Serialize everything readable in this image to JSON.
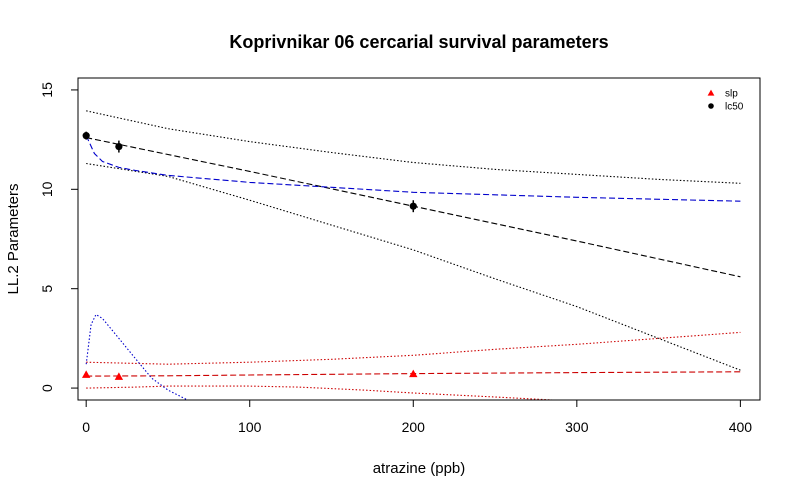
{
  "chart_data": {
    "type": "line",
    "title": "Koprivnikar 06 cercarial survival parameters",
    "xlabel": "atrazine (ppb)",
    "ylabel": "LL.2 Parameters",
    "xlim": [
      -5,
      412
    ],
    "ylim": [
      -0.6,
      15.6
    ],
    "xticks": [
      0,
      100,
      200,
      300,
      400
    ],
    "yticks": [
      0,
      5,
      10,
      15
    ],
    "grid": false,
    "legend_position": "top-right",
    "legend": [
      {
        "label": "slp",
        "marker": "triangle",
        "color": "#ff0000"
      },
      {
        "label": "lc50",
        "marker": "circle",
        "color": "#000000"
      }
    ],
    "points": [
      {
        "series": "lc50",
        "x": [
          0,
          20,
          200
        ],
        "y": [
          12.7,
          12.15,
          9.15
        ],
        "err_low": [
          12.5,
          11.85,
          8.85
        ],
        "err_high": [
          12.9,
          12.45,
          9.45
        ],
        "color": "#000000",
        "marker": "circle"
      },
      {
        "series": "slp",
        "x": [
          0,
          20,
          200
        ],
        "y": [
          0.68,
          0.58,
          0.72
        ],
        "err_low": [
          0.6,
          0.5,
          0.64
        ],
        "err_high": [
          0.76,
          0.66,
          0.8
        ],
        "color": "#ff0000",
        "marker": "triangle"
      }
    ],
    "lines": [
      {
        "series": "lc50 fit",
        "style": "dashed",
        "color": "#000000",
        "x": [
          0,
          100,
          200,
          300,
          400
        ],
        "y": [
          12.6,
          10.9,
          9.15,
          7.4,
          5.6
        ]
      },
      {
        "series": "lc50 upper band",
        "style": "dotted",
        "color": "#000000",
        "x": [
          0,
          50,
          100,
          150,
          200,
          250,
          300,
          350,
          400
        ],
        "y": [
          13.95,
          13.05,
          12.4,
          11.85,
          11.35,
          11.0,
          10.75,
          10.5,
          10.3
        ]
      },
      {
        "series": "lc50 lower band",
        "style": "dotted",
        "color": "#000000",
        "x": [
          0,
          50,
          100,
          150,
          200,
          250,
          300,
          350,
          400
        ],
        "y": [
          11.3,
          10.65,
          9.45,
          8.2,
          6.95,
          5.5,
          4.1,
          2.5,
          0.9
        ]
      },
      {
        "series": "lc50 smooth",
        "style": "dashed",
        "color": "#0000cc",
        "x": [
          0,
          5,
          10,
          20,
          30,
          50,
          100,
          150,
          200,
          300,
          400
        ],
        "y": [
          12.7,
          11.8,
          11.4,
          11.1,
          10.95,
          10.7,
          10.35,
          10.1,
          9.85,
          9.6,
          9.4
        ]
      },
      {
        "series": "slp fit",
        "style": "dashed",
        "color": "#cc0000",
        "x": [
          0,
          50,
          100,
          200,
          300,
          400
        ],
        "y": [
          0.6,
          0.62,
          0.66,
          0.73,
          0.78,
          0.82
        ]
      },
      {
        "series": "slp upper band",
        "style": "dotted",
        "color": "#cc0000",
        "x": [
          0,
          50,
          100,
          150,
          200,
          250,
          300,
          350,
          400
        ],
        "y": [
          1.3,
          1.2,
          1.3,
          1.45,
          1.65,
          1.95,
          2.2,
          2.5,
          2.8
        ]
      },
      {
        "series": "slp lower band",
        "style": "dotted",
        "color": "#cc0000",
        "x": [
          0,
          30,
          50,
          100,
          130,
          170,
          200,
          250,
          285
        ],
        "y": [
          0.0,
          0.05,
          0.1,
          0.1,
          0.05,
          -0.1,
          -0.25,
          -0.45,
          -0.6
        ]
      },
      {
        "series": "slp smooth",
        "style": "dotted",
        "color": "#0000cc",
        "x": [
          0,
          3,
          6,
          10,
          20,
          30,
          40,
          50,
          62
        ],
        "y": [
          1.2,
          3.2,
          3.7,
          3.5,
          2.5,
          1.5,
          0.5,
          -0.1,
          -0.6
        ]
      }
    ]
  }
}
